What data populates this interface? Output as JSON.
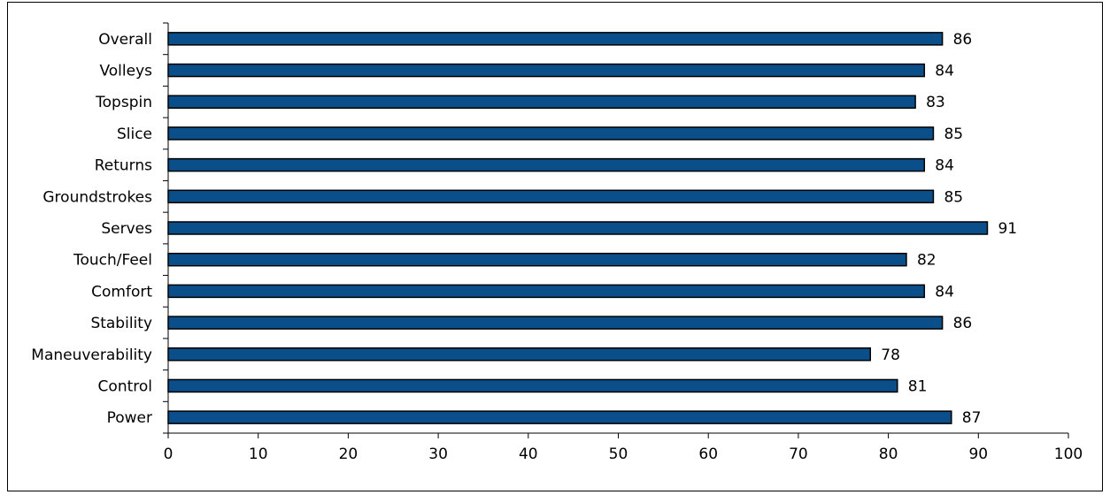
{
  "chart_data": {
    "type": "bar",
    "orientation": "horizontal",
    "categories": [
      "Overall",
      "Volleys",
      "Topspin",
      "Slice",
      "Returns",
      "Groundstrokes",
      "Serves",
      "Touch/Feel",
      "Comfort",
      "Stability",
      "Maneuverability",
      "Control",
      "Power"
    ],
    "values": [
      86,
      84,
      83,
      85,
      84,
      85,
      91,
      82,
      84,
      86,
      78,
      81,
      87
    ],
    "color": "#0b4f8a",
    "xlim": [
      0,
      100
    ],
    "xticks": [
      0,
      10,
      20,
      30,
      40,
      50,
      60,
      70,
      80,
      90,
      100
    ],
    "grid": false
  }
}
